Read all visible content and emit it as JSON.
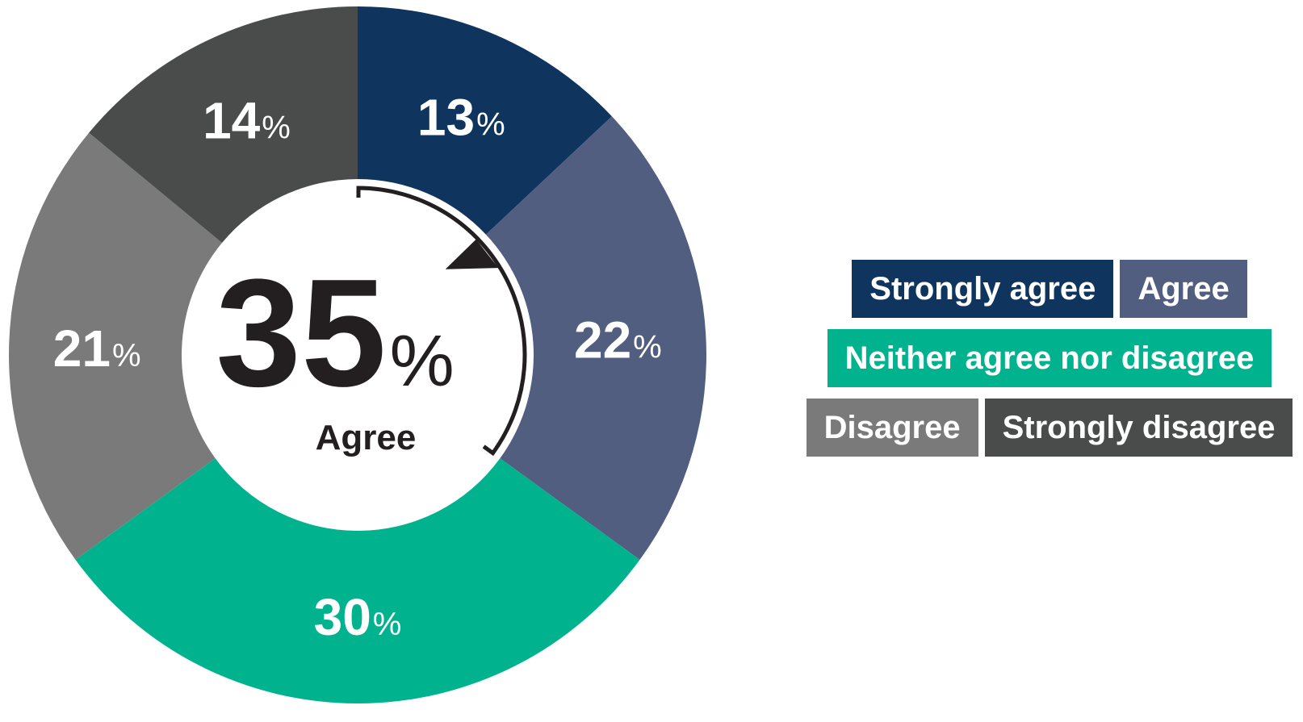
{
  "chart_data": {
    "type": "pie",
    "style": "donut",
    "slices": [
      {
        "label": "Strongly agree",
        "value": 13,
        "color": "#0f355e"
      },
      {
        "label": "Agree",
        "value": 22,
        "color": "#515e7f"
      },
      {
        "label": "Neither agree nor disagree",
        "value": 30,
        "color": "#00b38e"
      },
      {
        "label": "Disagree",
        "value": 21,
        "color": "#7a7a7a"
      },
      {
        "label": "Strongly disagree",
        "value": 14,
        "color": "#4a4b4b"
      }
    ],
    "value_suffix": "%",
    "center": {
      "value": "35",
      "suffix": "%",
      "caption": "Agree"
    },
    "legend": {
      "placement": "right",
      "rows": [
        [
          {
            "label": "Strongly agree",
            "color": "#0f355e"
          },
          {
            "label": "Agree",
            "color": "#515e7f"
          }
        ],
        [
          {
            "label": "Neither agree nor disagree",
            "color": "#00b38e"
          }
        ],
        [
          {
            "label": "Disagree",
            "color": "#7a7a7a"
          },
          {
            "label": "Strongly disagree",
            "color": "#4a4b4b"
          }
        ]
      ]
    }
  }
}
